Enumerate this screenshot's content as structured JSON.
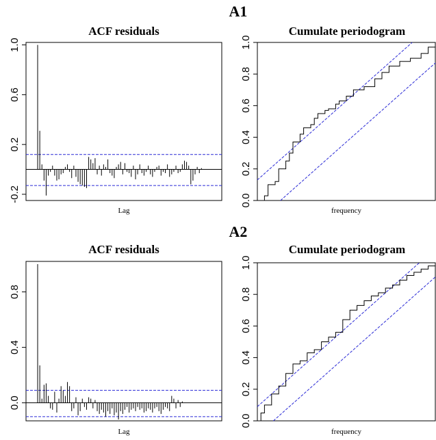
{
  "figure": {
    "section_titles": [
      "A1",
      "A2"
    ]
  },
  "chart_data": [
    {
      "type": "bar",
      "title": "ACF residuals",
      "xlabel": "Lag",
      "ylabel": "",
      "ylim": [
        -0.25,
        1.02
      ],
      "yticks": [
        "-0.2",
        "0.2",
        "0.6",
        "1.0"
      ],
      "ytick_values": [
        -0.2,
        0.2,
        0.6,
        1.0
      ],
      "x": [
        0,
        1,
        2,
        3,
        4,
        5,
        6,
        7,
        8,
        9,
        10,
        11,
        12,
        13,
        14,
        15,
        16,
        17,
        18,
        19,
        20,
        21,
        22,
        23,
        24,
        25,
        26,
        27,
        28,
        29,
        30,
        31,
        32,
        33,
        34,
        35,
        36,
        37,
        38,
        39,
        40,
        41,
        42,
        43,
        44,
        45,
        46,
        47,
        48,
        49,
        50,
        51,
        52,
        53,
        54,
        55,
        56,
        57,
        58,
        59,
        60,
        61,
        62,
        63,
        64,
        65,
        66,
        67,
        68,
        69,
        70,
        71,
        72,
        73,
        74,
        75,
        76,
        77,
        78,
        79,
        80,
        81,
        82,
        83
      ],
      "values": [
        1.0,
        0.31,
        0.04,
        -0.09,
        -0.21,
        -0.05,
        -0.02,
        0.03,
        -0.05,
        -0.09,
        -0.08,
        -0.04,
        -0.03,
        0.02,
        0.04,
        -0.02,
        -0.07,
        0.03,
        -0.06,
        -0.1,
        -0.12,
        -0.13,
        -0.14,
        -0.15,
        0.1,
        0.08,
        0.05,
        0.09,
        -0.04,
        0.03,
        -0.05,
        0.04,
        0.02,
        0.08,
        -0.03,
        -0.05,
        -0.07,
        0.02,
        0.04,
        0.06,
        -0.04,
        0.05,
        -0.02,
        -0.03,
        -0.06,
        0.03,
        -0.08,
        -0.04,
        0.04,
        -0.03,
        -0.05,
        -0.02,
        0.03,
        -0.04,
        -0.06,
        -0.02,
        0.02,
        0.03,
        -0.05,
        -0.02,
        -0.03,
        0.04,
        -0.06,
        -0.04,
        -0.02,
        0.03,
        -0.03,
        -0.02,
        0.04,
        0.07,
        0.06,
        0.03,
        -0.12,
        -0.09,
        -0.04,
        0.02,
        -0.03,
        0.01,
        0.0,
        0.0,
        0.0,
        0.0,
        0.0,
        0.0
      ],
      "conf_bands": [
        0.12,
        -0.13
      ],
      "colors": {
        "bars": "#000000",
        "bands": "#2a2ad6",
        "zero_line": "#000000"
      }
    },
    {
      "type": "line",
      "title": "Cumulate periodogram",
      "xlabel": "frequency",
      "ylabel": "",
      "xlim": [
        0,
        0.5
      ],
      "ylim": [
        0,
        1.0
      ],
      "yticks": [
        "0.0",
        "0.2",
        "0.4",
        "0.6",
        "0.8",
        "1.0"
      ],
      "ytick_values": [
        0,
        0.2,
        0.4,
        0.6,
        0.8,
        1.0
      ],
      "x": [
        0,
        0.02,
        0.03,
        0.05,
        0.06,
        0.08,
        0.09,
        0.1,
        0.12,
        0.13,
        0.15,
        0.16,
        0.17,
        0.19,
        0.2,
        0.22,
        0.23,
        0.25,
        0.27,
        0.3,
        0.33,
        0.35,
        0.37,
        0.4,
        0.43,
        0.46,
        0.48,
        0.5
      ],
      "values": [
        0,
        0.03,
        0.1,
        0.12,
        0.2,
        0.25,
        0.3,
        0.37,
        0.42,
        0.46,
        0.48,
        0.52,
        0.55,
        0.57,
        0.58,
        0.61,
        0.63,
        0.66,
        0.7,
        0.72,
        0.77,
        0.81,
        0.85,
        0.88,
        0.9,
        0.93,
        0.97,
        1.0
      ],
      "bounds_intercept": 0.13,
      "colors": {
        "line": "#000000",
        "bounds": "#2a2ad6"
      }
    },
    {
      "type": "bar",
      "title": "ACF residuals",
      "xlabel": "Lag",
      "ylabel": "",
      "ylim": [
        -0.13,
        1.02
      ],
      "yticks": [
        "0.0",
        "0.4",
        "0.8"
      ],
      "ytick_values": [
        0.0,
        0.4,
        0.8
      ],
      "x": [
        0,
        1,
        2,
        3,
        4,
        5,
        6,
        7,
        8,
        9,
        10,
        11,
        12,
        13,
        14,
        15,
        16,
        17,
        18,
        19,
        20,
        21,
        22,
        23,
        24,
        25,
        26,
        27,
        28,
        29,
        30,
        31,
        32,
        33,
        34,
        35,
        36,
        37,
        38,
        39,
        40,
        41,
        42,
        43,
        44,
        45,
        46,
        47,
        48,
        49,
        50,
        51,
        52,
        53,
        54,
        55,
        56,
        57,
        58,
        59,
        60,
        61,
        62,
        63,
        64,
        65,
        66,
        67,
        68,
        69,
        70,
        71,
        72,
        73,
        74,
        75,
        76,
        77,
        78,
        79,
        80,
        81,
        82,
        83
      ],
      "values": [
        1.0,
        0.27,
        0.03,
        0.13,
        0.14,
        0.05,
        -0.04,
        -0.05,
        0.08,
        -0.07,
        0.03,
        0.12,
        0.09,
        0.05,
        0.15,
        0.12,
        -0.06,
        -0.04,
        0.04,
        -0.09,
        -0.06,
        0.03,
        -0.03,
        -0.05,
        0.04,
        0.03,
        -0.04,
        0.02,
        -0.06,
        -0.08,
        -0.05,
        -0.07,
        -0.1,
        -0.06,
        -0.08,
        -0.04,
        -0.09,
        -0.07,
        -0.12,
        -0.06,
        -0.08,
        -0.05,
        -0.03,
        -0.07,
        -0.05,
        -0.04,
        -0.06,
        -0.03,
        -0.05,
        -0.04,
        -0.07,
        -0.06,
        -0.04,
        -0.05,
        -0.07,
        -0.04,
        -0.03,
        -0.06,
        -0.08,
        -0.05,
        -0.03,
        -0.04,
        -0.06,
        0.05,
        0.03,
        -0.04,
        0.02,
        -0.03,
        0.01,
        0.0,
        0.0,
        0.0,
        0.0,
        0.0,
        0.0,
        0.0,
        0.0,
        0.0,
        0.0,
        0.0,
        0.0,
        0.0,
        0.0,
        0.0
      ],
      "conf_bands": [
        0.09,
        -0.1
      ],
      "colors": {
        "bars": "#000000",
        "bands": "#2a2ad6",
        "zero_line": "#000000"
      }
    },
    {
      "type": "line",
      "title": "Cumulate periodogram",
      "xlabel": "frequency",
      "ylabel": "",
      "xlim": [
        0,
        0.5
      ],
      "ylim": [
        0,
        1.0
      ],
      "yticks": [
        "0.0",
        "0.2",
        "0.4",
        "0.6",
        "0.8",
        "1.0"
      ],
      "ytick_values": [
        0,
        0.2,
        0.4,
        0.6,
        0.8,
        1.0
      ],
      "x": [
        0,
        0.01,
        0.02,
        0.04,
        0.06,
        0.08,
        0.1,
        0.12,
        0.14,
        0.16,
        0.18,
        0.2,
        0.22,
        0.24,
        0.26,
        0.28,
        0.3,
        0.32,
        0.34,
        0.36,
        0.38,
        0.4,
        0.42,
        0.44,
        0.46,
        0.48,
        0.5
      ],
      "values": [
        0,
        0.05,
        0.1,
        0.17,
        0.22,
        0.3,
        0.36,
        0.38,
        0.43,
        0.45,
        0.5,
        0.53,
        0.56,
        0.64,
        0.7,
        0.73,
        0.76,
        0.79,
        0.81,
        0.84,
        0.86,
        0.89,
        0.92,
        0.94,
        0.96,
        0.98,
        1.0
      ],
      "bounds_intercept": 0.09,
      "colors": {
        "line": "#000000",
        "bounds": "#2a2ad6"
      }
    }
  ]
}
